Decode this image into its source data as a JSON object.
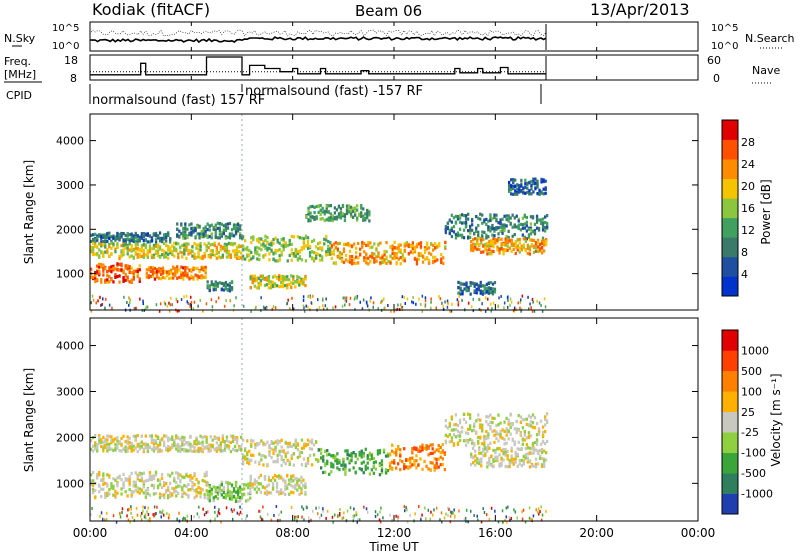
{
  "header": {
    "station": "Kodiak (fitACF)",
    "beam": "Beam 06",
    "date": "13/Apr/2013"
  },
  "side_labels": {
    "nsky": "N.Sky",
    "freq_line1": "Freq.",
    "freq_line2": "[MHz]",
    "cpid": "CPID",
    "nsearch": "N.Search",
    "nave": "Nave"
  },
  "cpid_labels": [
    "normalsound (fast) 157 RF",
    "normalsound (fast) -157 RF"
  ],
  "colors": {
    "frame": "#000000",
    "power_scale": [
      "#0033cc",
      "#1f4fa0",
      "#3a7a6a",
      "#3fa060",
      "#8cc63f",
      "#f5c400",
      "#ff8c00",
      "#ff5000",
      "#e00000"
    ],
    "velocity_scale": [
      "#1f3fb0",
      "#2f7f5f",
      "#3aa63a",
      "#8fd040",
      "#c8c8c0",
      "#ffb000",
      "#ff8000",
      "#ff4000",
      "#e00000"
    ]
  },
  "chart_data": [
    {
      "type": "line",
      "panel": "noise",
      "left_axis": {
        "label": "N.Sky",
        "ticks": [
          "10^5",
          "10^0"
        ]
      },
      "right_axis": {
        "label": "N.Search",
        "ticks": [
          "10^5",
          "10^0"
        ]
      },
      "x_range_hours": [
        0,
        18
      ]
    },
    {
      "type": "line",
      "panel": "frequency",
      "left_axis": {
        "ticks": [
          "18",
          "8"
        ]
      },
      "right_axis": {
        "label": "Nave",
        "ticks": [
          "60",
          "0"
        ]
      },
      "freq_steps": [
        {
          "from": 0,
          "to": 2.0,
          "level": 0.15
        },
        {
          "from": 2.0,
          "to": 2.2,
          "level": 0.7
        },
        {
          "from": 2.2,
          "to": 4.6,
          "level": 0.15
        },
        {
          "from": 4.6,
          "to": 6.0,
          "level": 1.0
        },
        {
          "from": 6.0,
          "to": 6.3,
          "level": 0.15
        },
        {
          "from": 6.3,
          "to": 6.9,
          "level": 0.6
        },
        {
          "from": 6.9,
          "to": 7.5,
          "level": 0.45
        },
        {
          "from": 7.5,
          "to": 8.0,
          "level": 0.3
        },
        {
          "from": 8.0,
          "to": 8.2,
          "level": 0.45
        },
        {
          "from": 8.2,
          "to": 9.1,
          "level": 0.2
        },
        {
          "from": 9.1,
          "to": 9.3,
          "level": 0.45
        },
        {
          "from": 9.3,
          "to": 10.7,
          "level": 0.2
        },
        {
          "from": 10.7,
          "to": 11.0,
          "level": 0.35
        },
        {
          "from": 11.0,
          "to": 14.4,
          "level": 0.2
        },
        {
          "from": 14.4,
          "to": 14.6,
          "level": 0.45
        },
        {
          "from": 14.6,
          "to": 15.3,
          "level": 0.25
        },
        {
          "from": 15.3,
          "to": 15.5,
          "level": 0.45
        },
        {
          "from": 15.5,
          "to": 16.2,
          "level": 0.25
        },
        {
          "from": 16.2,
          "to": 16.5,
          "level": 0.5
        },
        {
          "from": 16.5,
          "to": 18.0,
          "level": 0.2
        }
      ],
      "nave_dotted_level": 0.3
    },
    {
      "type": "heatmap",
      "panel": "power",
      "ylabel": "Slant Range [km]",
      "yticks": [
        1000,
        2000,
        3000,
        4000
      ],
      "ylim": [
        180,
        4600
      ],
      "x_range_hours": [
        0,
        24
      ],
      "data_extent_hours": [
        0,
        18
      ],
      "colorbar": {
        "label": "Power [dB]",
        "ticks": [
          4,
          8,
          12,
          16,
          20,
          24,
          28
        ],
        "range": [
          0,
          32
        ]
      },
      "bands": [
        {
          "t0": 0.0,
          "t1": 2.0,
          "center": 1050,
          "width": 300,
          "value": 26
        },
        {
          "t0": 0.0,
          "t1": 3.2,
          "center": 1850,
          "width": 150,
          "value": 8
        },
        {
          "t0": 0.0,
          "t1": 6.0,
          "center": 1550,
          "width": 250,
          "value": 18
        },
        {
          "t0": 2.2,
          "t1": 4.6,
          "center": 1050,
          "width": 200,
          "value": 24
        },
        {
          "t0": 3.4,
          "t1": 6.0,
          "center": 2000,
          "width": 250,
          "value": 10
        },
        {
          "t0": 4.6,
          "t1": 5.6,
          "center": 750,
          "width": 150,
          "value": 10
        },
        {
          "t0": 6.3,
          "t1": 8.5,
          "center": 850,
          "width": 200,
          "value": 18
        },
        {
          "t0": 6.0,
          "t1": 9.5,
          "center": 1600,
          "width": 400,
          "value": 16
        },
        {
          "t0": 9.5,
          "t1": 14.0,
          "center": 1500,
          "width": 350,
          "value": 22
        },
        {
          "t0": 8.5,
          "t1": 11.0,
          "center": 2400,
          "width": 250,
          "value": 12
        },
        {
          "t0": 14.0,
          "t1": 18.0,
          "center": 2100,
          "width": 400,
          "value": 10
        },
        {
          "t0": 15.0,
          "t1": 18.0,
          "center": 1650,
          "width": 250,
          "value": 22
        },
        {
          "t0": 16.5,
          "t1": 18.0,
          "center": 3000,
          "width": 250,
          "value": 6
        },
        {
          "t0": 14.5,
          "t1": 16.0,
          "center": 700,
          "width": 200,
          "value": 8
        }
      ]
    },
    {
      "type": "heatmap",
      "panel": "velocity",
      "ylabel": "Slant Range [km]",
      "yticks": [
        1000,
        2000,
        3000,
        4000
      ],
      "ylim": [
        180,
        4600
      ],
      "x_range_hours": [
        0,
        24
      ],
      "data_extent_hours": [
        0,
        18
      ],
      "colorbar": {
        "label": "Velocity [m s⁻¹]",
        "ticks": [
          "1000",
          "500",
          "100",
          "25",
          "-25",
          "-100",
          "-500",
          "-1000"
        ]
      },
      "bands": [
        {
          "t0": 0.0,
          "t1": 4.6,
          "center": 1000,
          "width": 400,
          "value": 4
        },
        {
          "t0": 0.0,
          "t1": 6.0,
          "center": 1900,
          "width": 250,
          "value": 4
        },
        {
          "t0": 4.6,
          "t1": 6.3,
          "center": 850,
          "width": 300,
          "value": 3
        },
        {
          "t0": 6.3,
          "t1": 8.5,
          "center": 1000,
          "width": 300,
          "value": 4
        },
        {
          "t0": 6.0,
          "t1": 9.0,
          "center": 1700,
          "width": 400,
          "value": 4
        },
        {
          "t0": 9.0,
          "t1": 11.8,
          "center": 1500,
          "width": 400,
          "value": 2
        },
        {
          "t0": 11.8,
          "t1": 14.0,
          "center": 1600,
          "width": 400,
          "value": 6
        },
        {
          "t0": 14.0,
          "t1": 18.0,
          "center": 2200,
          "width": 500,
          "value": 4
        },
        {
          "t0": 15.0,
          "t1": 18.0,
          "center": 1600,
          "width": 300,
          "value": 4
        }
      ]
    }
  ],
  "time_axis": {
    "label": "Time UT",
    "ticks": [
      "00:00",
      "04:00",
      "08:00",
      "12:00",
      "16:00",
      "20:00",
      "00:00"
    ]
  }
}
